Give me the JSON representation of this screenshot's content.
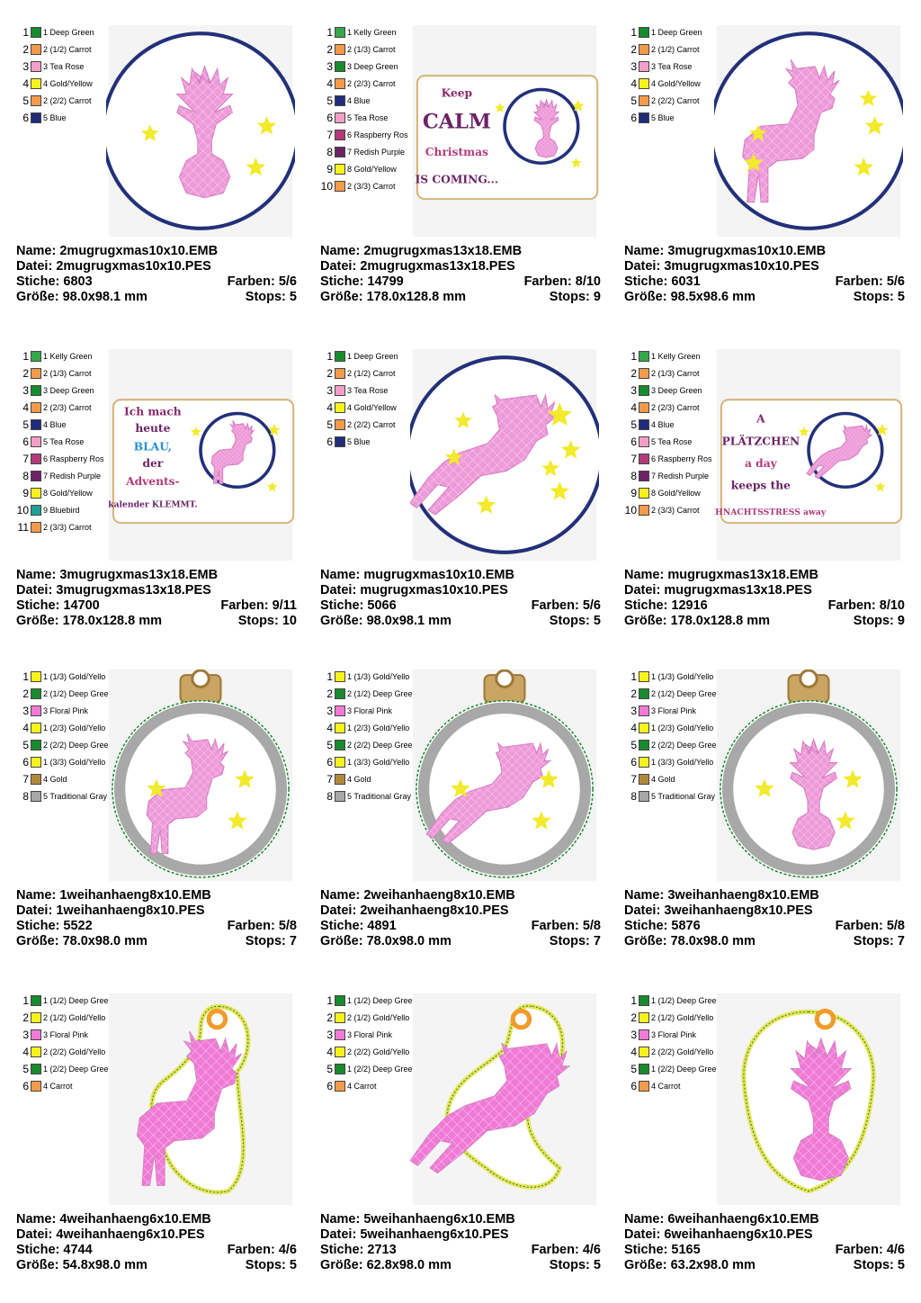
{
  "colors": {
    "deep_green": "#1a8a2e",
    "carrot": "#f39a4b",
    "tea_rose": "#f2a0c8",
    "gold_yellow": "#f7f21c",
    "blue": "#1f2d7a",
    "kelly_green": "#37a64a",
    "raspberry_rose": "#b23a7a",
    "redish_purple": "#6b2466",
    "bluebird": "#1f9e9a",
    "floral_pink": "#f07ad6",
    "gold": "#b08a3c",
    "traditional_gray": "#a8a8a8",
    "deer_pink": "#ee9ad8",
    "frame_navy": "#23307a",
    "star_yellow": "#f2ea2a"
  },
  "labels": {
    "name": "Name:",
    "datei": "Datei:",
    "stiche": "Stiche:",
    "farben": "Farben:",
    "groesse": "Größe:",
    "stops": "Stops:"
  },
  "designs": [
    {
      "name": "2mugrugxmas10x10.EMB",
      "datei": "2mugrugxmas10x10.PES",
      "stiche": "6803",
      "farben": "5/6",
      "groesse": "98.0x98.1 mm",
      "stops": "5",
      "art": "circle",
      "deer": "head",
      "swatches": [
        {
          "num": "1",
          "label": "1 Deep Green",
          "color": "#1a8a2e"
        },
        {
          "num": "2",
          "label": "2 (1/2) Carrot",
          "color": "#f39a4b"
        },
        {
          "num": "3",
          "label": "3 Tea Rose",
          "color": "#f2a0c8"
        },
        {
          "num": "4",
          "label": "4 Gold/Yellow",
          "color": "#f7f21c"
        },
        {
          "num": "5",
          "label": "2 (2/2) Carrot",
          "color": "#f39a4b"
        },
        {
          "num": "6",
          "label": "5 Blue",
          "color": "#1f2d7a"
        }
      ]
    },
    {
      "name": "2mugrugxmas13x18.EMB",
      "datei": "2mugrugxmas13x18.PES",
      "stiche": "14799",
      "farben": "8/10",
      "groesse": "178.0x128.8 mm",
      "stops": "9",
      "art": "rect",
      "deer": "head",
      "text": [
        "Keep",
        "CALM",
        "Christmas",
        "IS COMING..."
      ],
      "swatches": [
        {
          "num": "1",
          "label": "1 Kelly Green",
          "color": "#37a64a"
        },
        {
          "num": "2",
          "label": "2 (1/3) Carrot",
          "color": "#f39a4b"
        },
        {
          "num": "3",
          "label": "3 Deep Green",
          "color": "#1a8a2e"
        },
        {
          "num": "4",
          "label": "2 (2/3) Carrot",
          "color": "#f39a4b"
        },
        {
          "num": "5",
          "label": "4 Blue",
          "color": "#1f2d7a"
        },
        {
          "num": "6",
          "label": "5 Tea Rose",
          "color": "#f2a0c8"
        },
        {
          "num": "7",
          "label": "6 Raspberry Ros",
          "color": "#b23a7a"
        },
        {
          "num": "8",
          "label": "7 Redish Purple",
          "color": "#6b2466"
        },
        {
          "num": "9",
          "label": "8 Gold/Yellow",
          "color": "#f7f21c"
        },
        {
          "num": "10",
          "label": "2 (3/3) Carrot",
          "color": "#f39a4b"
        }
      ]
    },
    {
      "name": "3mugrugxmas10x10.EMB",
      "datei": "3mugrugxmas10x10.PES",
      "stiche": "6031",
      "farben": "5/6",
      "groesse": "98.5x98.6 mm",
      "stops": "5",
      "art": "circle",
      "deer": "standing",
      "swatches": [
        {
          "num": "1",
          "label": "1 Deep Green",
          "color": "#1a8a2e"
        },
        {
          "num": "2",
          "label": "2 (1/2) Carrot",
          "color": "#f39a4b"
        },
        {
          "num": "3",
          "label": "3 Tea Rose",
          "color": "#f2a0c8"
        },
        {
          "num": "4",
          "label": "4 Gold/Yellow",
          "color": "#f7f21c"
        },
        {
          "num": "5",
          "label": "2 (2/2) Carrot",
          "color": "#f39a4b"
        },
        {
          "num": "6",
          "label": "5 Blue",
          "color": "#1f2d7a"
        }
      ]
    },
    {
      "name": "3mugrugxmas13x18.EMB",
      "datei": "3mugrugxmas13x18.PES",
      "stiche": "14700",
      "farben": "9/11",
      "groesse": "178.0x128.8 mm",
      "stops": "10",
      "art": "rect",
      "deer": "standing",
      "text": [
        "Ich mach",
        "heute",
        "BLAU,",
        "der",
        "Advents-",
        "kalender KLEMMT."
      ],
      "swatches": [
        {
          "num": "1",
          "label": "1 Kelly Green",
          "color": "#37a64a"
        },
        {
          "num": "2",
          "label": "2 (1/3) Carrot",
          "color": "#f39a4b"
        },
        {
          "num": "3",
          "label": "3 Deep Green",
          "color": "#1a8a2e"
        },
        {
          "num": "4",
          "label": "2 (2/3) Carrot",
          "color": "#f39a4b"
        },
        {
          "num": "5",
          "label": "4 Blue",
          "color": "#1f2d7a"
        },
        {
          "num": "6",
          "label": "5 Tea Rose",
          "color": "#f2a0c8"
        },
        {
          "num": "7",
          "label": "6 Raspberry Ros",
          "color": "#b23a7a"
        },
        {
          "num": "8",
          "label": "7 Redish Purple",
          "color": "#6b2466"
        },
        {
          "num": "9",
          "label": "8 Gold/Yellow",
          "color": "#f7f21c"
        },
        {
          "num": "10",
          "label": "9 Bluebird",
          "color": "#1f9e9a"
        },
        {
          "num": "11",
          "label": "2 (3/3) Carrot",
          "color": "#f39a4b"
        }
      ]
    },
    {
      "name": "mugrugxmas10x10.EMB",
      "datei": "mugrugxmas10x10.PES",
      "stiche": "5066",
      "farben": "5/6",
      "groesse": "98.0x98.1 mm",
      "stops": "5",
      "art": "circle",
      "deer": "leaping",
      "swatches": [
        {
          "num": "1",
          "label": "1 Deep Green",
          "color": "#1a8a2e"
        },
        {
          "num": "2",
          "label": "2 (1/2) Carrot",
          "color": "#f39a4b"
        },
        {
          "num": "3",
          "label": "3 Tea Rose",
          "color": "#f2a0c8"
        },
        {
          "num": "4",
          "label": "4 Gold/Yellow",
          "color": "#f7f21c"
        },
        {
          "num": "5",
          "label": "2 (2/2) Carrot",
          "color": "#f39a4b"
        },
        {
          "num": "6",
          "label": "5 Blue",
          "color": "#1f2d7a"
        }
      ]
    },
    {
      "name": "mugrugxmas13x18.EMB",
      "datei": "mugrugxmas13x18.PES",
      "stiche": "12916",
      "farben": "8/10",
      "groesse": "178.0x128.8 mm",
      "stops": "9",
      "art": "rect",
      "deer": "leaping",
      "text": [
        "A",
        "PLÄTZCHEN",
        "a day",
        "keeps the",
        "WEIHNACHTSSTRESS away"
      ],
      "swatches": [
        {
          "num": "1",
          "label": "1 Kelly Green",
          "color": "#37a64a"
        },
        {
          "num": "2",
          "label": "2 (1/3) Carrot",
          "color": "#f39a4b"
        },
        {
          "num": "3",
          "label": "3 Deep Green",
          "color": "#1a8a2e"
        },
        {
          "num": "4",
          "label": "2 (2/3) Carrot",
          "color": "#f39a4b"
        },
        {
          "num": "5",
          "label": "4 Blue",
          "color": "#1f2d7a"
        },
        {
          "num": "6",
          "label": "5 Tea Rose",
          "color": "#f2a0c8"
        },
        {
          "num": "7",
          "label": "6 Raspberry Ros",
          "color": "#b23a7a"
        },
        {
          "num": "8",
          "label": "7 Redish Purple",
          "color": "#6b2466"
        },
        {
          "num": "9",
          "label": "8 Gold/Yellow",
          "color": "#f7f21c"
        },
        {
          "num": "10",
          "label": "2 (3/3) Carrot",
          "color": "#f39a4b"
        }
      ]
    },
    {
      "name": "1weihanhaeng8x10.EMB",
      "datei": "1weihanhaeng8x10.PES",
      "stiche": "5522",
      "farben": "5/8",
      "groesse": "78.0x98.0 mm",
      "stops": "7",
      "art": "bauble",
      "deer": "standing",
      "swatches": [
        {
          "num": "1",
          "label": "1 (1/3) Gold/Yello",
          "color": "#f7f21c"
        },
        {
          "num": "2",
          "label": "2 (1/2) Deep Gree",
          "color": "#1a8a2e"
        },
        {
          "num": "3",
          "label": "3 Floral Pink",
          "color": "#f07ad6"
        },
        {
          "num": "4",
          "label": "1 (2/3) Gold/Yello",
          "color": "#f7f21c"
        },
        {
          "num": "5",
          "label": "2 (2/2) Deep Gree",
          "color": "#1a8a2e"
        },
        {
          "num": "6",
          "label": "1 (3/3) Gold/Yello",
          "color": "#f7f21c"
        },
        {
          "num": "7",
          "label": "4 Gold",
          "color": "#b08a3c"
        },
        {
          "num": "8",
          "label": "5 Traditional Gray",
          "color": "#a8a8a8"
        }
      ]
    },
    {
      "name": "2weihanhaeng8x10.EMB",
      "datei": "2weihanhaeng8x10.PES",
      "stiche": "4891",
      "farben": "5/8",
      "groesse": "78.0x98.0 mm",
      "stops": "7",
      "art": "bauble",
      "deer": "leaping",
      "swatches": [
        {
          "num": "1",
          "label": "1 (1/3) Gold/Yello",
          "color": "#f7f21c"
        },
        {
          "num": "2",
          "label": "2 (1/2) Deep Gree",
          "color": "#1a8a2e"
        },
        {
          "num": "3",
          "label": "3 Floral Pink",
          "color": "#f07ad6"
        },
        {
          "num": "4",
          "label": "1 (2/3) Gold/Yello",
          "color": "#f7f21c"
        },
        {
          "num": "5",
          "label": "2 (2/2) Deep Gree",
          "color": "#1a8a2e"
        },
        {
          "num": "6",
          "label": "1 (3/3) Gold/Yello",
          "color": "#f7f21c"
        },
        {
          "num": "7",
          "label": "4 Gold",
          "color": "#b08a3c"
        },
        {
          "num": "8",
          "label": "5 Traditional Gray",
          "color": "#a8a8a8"
        }
      ]
    },
    {
      "name": "3weihanhaeng8x10.EMB",
      "datei": "3weihanhaeng8x10.PES",
      "stiche": "5876",
      "farben": "5/8",
      "groesse": "78.0x98.0 mm",
      "stops": "7",
      "art": "bauble",
      "deer": "head",
      "swatches": [
        {
          "num": "1",
          "label": "1 (1/3) Gold/Yello",
          "color": "#f7f21c"
        },
        {
          "num": "2",
          "label": "2 (1/2) Deep Gree",
          "color": "#1a8a2e"
        },
        {
          "num": "3",
          "label": "3 Floral Pink",
          "color": "#f07ad6"
        },
        {
          "num": "4",
          "label": "1 (2/3) Gold/Yello",
          "color": "#f7f21c"
        },
        {
          "num": "5",
          "label": "2 (2/2) Deep Gree",
          "color": "#1a8a2e"
        },
        {
          "num": "6",
          "label": "1 (3/3) Gold/Yello",
          "color": "#f7f21c"
        },
        {
          "num": "7",
          "label": "4 Gold",
          "color": "#b08a3c"
        },
        {
          "num": "8",
          "label": "5 Traditional Gray",
          "color": "#a8a8a8"
        }
      ]
    },
    {
      "name": "4weihanhaeng6x10.EMB",
      "datei": "4weihanhaeng6x10.PES",
      "stiche": "4744",
      "farben": "4/6",
      "groesse": "54.8x98.0 mm",
      "stops": "5",
      "art": "tag",
      "deer": "standing",
      "swatches": [
        {
          "num": "1",
          "label": "1 (1/2) Deep Gree",
          "color": "#1a8a2e"
        },
        {
          "num": "2",
          "label": "2 (1/2) Gold/Yello",
          "color": "#f7f21c"
        },
        {
          "num": "3",
          "label": "3 Floral Pink",
          "color": "#f07ad6"
        },
        {
          "num": "4",
          "label": "2 (2/2) Gold/Yello",
          "color": "#f7f21c"
        },
        {
          "num": "5",
          "label": "1 (2/2) Deep Gree",
          "color": "#1a8a2e"
        },
        {
          "num": "6",
          "label": "4 Carrot",
          "color": "#f39a4b"
        }
      ]
    },
    {
      "name": "5weihanhaeng6x10.EMB",
      "datei": "5weihanhaeng6x10.PES",
      "stiche": "2713",
      "farben": "4/6",
      "groesse": "62.8x98.0 mm",
      "stops": "5",
      "art": "tag",
      "deer": "leaping",
      "swatches": [
        {
          "num": "1",
          "label": "1 (1/2) Deep Gree",
          "color": "#1a8a2e"
        },
        {
          "num": "2",
          "label": "2 (1/2) Gold/Yello",
          "color": "#f7f21c"
        },
        {
          "num": "3",
          "label": "3 Floral Pink",
          "color": "#f07ad6"
        },
        {
          "num": "4",
          "label": "2 (2/2) Gold/Yello",
          "color": "#f7f21c"
        },
        {
          "num": "5",
          "label": "1 (2/2) Deep Gree",
          "color": "#1a8a2e"
        },
        {
          "num": "6",
          "label": "4 Carrot",
          "color": "#f39a4b"
        }
      ]
    },
    {
      "name": "6weihanhaeng6x10.EMB",
      "datei": "6weihanhaeng6x10.PES",
      "stiche": "5165",
      "farben": "4/6",
      "groesse": "63.2x98.0 mm",
      "stops": "5",
      "art": "tag",
      "deer": "head",
      "swatches": [
        {
          "num": "1",
          "label": "1 (1/2) Deep Gree",
          "color": "#1a8a2e"
        },
        {
          "num": "2",
          "label": "2 (1/2) Gold/Yello",
          "color": "#f7f21c"
        },
        {
          "num": "3",
          "label": "3 Floral Pink",
          "color": "#f07ad6"
        },
        {
          "num": "4",
          "label": "2 (2/2) Gold/Yello",
          "color": "#f7f21c"
        },
        {
          "num": "5",
          "label": "1 (2/2) Deep Gree",
          "color": "#1a8a2e"
        },
        {
          "num": "6",
          "label": "4 Carrot",
          "color": "#f39a4b"
        }
      ]
    }
  ]
}
